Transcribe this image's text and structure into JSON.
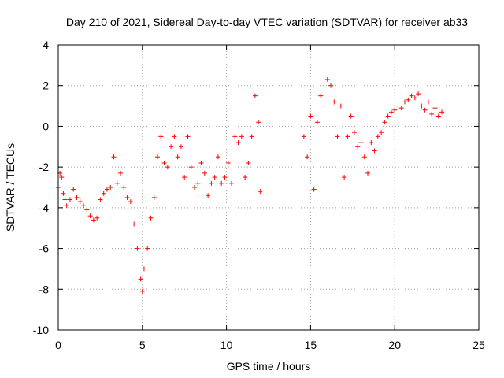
{
  "chart_data": {
    "type": "scatter",
    "title": "Day 210 of 2021, Sidereal Day-to-day VTEC variation (SDTVAR) for receiver ab33",
    "xlabel": "GPS time / hours",
    "ylabel": "SDTVAR / TECUs",
    "xlim": [
      0,
      25
    ],
    "ylim": [
      -10,
      4
    ],
    "xticks": [
      0,
      5,
      10,
      15,
      20,
      25
    ],
    "yticks": [
      -10,
      -8,
      -6,
      -4,
      -2,
      0,
      2,
      4
    ],
    "xtick_labels": [
      "0",
      "5",
      "10",
      "15",
      "20",
      "25"
    ],
    "ytick_labels": [
      "-10",
      "-8",
      "-6",
      "-4",
      "-2",
      "0",
      "2",
      "4"
    ],
    "grid": true,
    "marker": "+",
    "series": [
      {
        "name": "SDTVAR ab33",
        "color": "#ff0000",
        "x": [
          0.0,
          0.1,
          0.2,
          0.3,
          0.4,
          0.5,
          0.7,
          0.9,
          1.1,
          1.3,
          1.5,
          1.7,
          1.9,
          2.1,
          2.3,
          2.5,
          2.7,
          2.9,
          3.1,
          3.3,
          3.5,
          3.7,
          3.9,
          4.1,
          4.3,
          4.5,
          4.7,
          4.9,
          5.0,
          5.1,
          5.3,
          5.5,
          5.7,
          5.9,
          6.1,
          6.3,
          6.5,
          6.7,
          6.9,
          7.1,
          7.3,
          7.5,
          7.7,
          7.9,
          8.1,
          8.3,
          8.5,
          8.7,
          8.9,
          9.1,
          9.3,
          9.5,
          9.7,
          9.9,
          10.1,
          10.3,
          10.5,
          10.7,
          10.9,
          11.1,
          11.3,
          11.5,
          11.7,
          11.9,
          12.0,
          14.6,
          14.8,
          15.0,
          15.2,
          15.4,
          15.6,
          15.8,
          16.0,
          16.2,
          16.4,
          16.6,
          16.8,
          17.0,
          17.2,
          17.4,
          17.6,
          17.8,
          18.0,
          18.2,
          18.4,
          18.6,
          18.8,
          19.0,
          19.2,
          19.4,
          19.6,
          19.8,
          20.0,
          20.2,
          20.4,
          20.6,
          20.8,
          21.0,
          21.2,
          21.4,
          21.6,
          21.8,
          22.0,
          22.2,
          22.4,
          22.6,
          22.8
        ],
        "y": [
          -3.0,
          -2.3,
          -2.5,
          -3.3,
          -3.6,
          -3.9,
          -3.6,
          -3.1,
          -3.5,
          -3.7,
          -3.9,
          -4.1,
          -4.4,
          -4.6,
          -4.5,
          -3.6,
          -3.3,
          -3.1,
          -3.0,
          -1.5,
          -2.8,
          -2.3,
          -3.0,
          -3.5,
          -3.7,
          -4.8,
          -6.0,
          -7.5,
          -8.1,
          -7.0,
          -6.0,
          -4.5,
          -3.5,
          -1.5,
          -0.5,
          -1.8,
          -2.0,
          -1.0,
          -0.5,
          -1.5,
          -1.0,
          -2.5,
          -0.5,
          -2.0,
          -3.0,
          -2.8,
          -1.8,
          -2.3,
          -3.4,
          -2.8,
          -2.5,
          -1.5,
          -2.8,
          -2.5,
          -1.8,
          -2.8,
          -0.5,
          -0.8,
          -0.5,
          -2.5,
          -1.8,
          -0.5,
          1.5,
          0.2,
          -3.2,
          -0.5,
          -1.5,
          0.5,
          -3.1,
          0.2,
          1.5,
          1.0,
          2.3,
          2.0,
          1.2,
          -0.5,
          1.0,
          -2.5,
          -0.5,
          0.5,
          -0.3,
          -1.0,
          -0.8,
          -1.5,
          -2.3,
          -0.8,
          -1.2,
          -0.5,
          -0.3,
          0.2,
          0.5,
          0.7,
          0.8,
          1.0,
          0.9,
          1.2,
          1.3,
          1.5,
          1.4,
          1.6,
          1.0,
          0.8,
          1.2,
          0.6,
          0.9,
          0.5,
          0.7
        ]
      }
    ]
  }
}
